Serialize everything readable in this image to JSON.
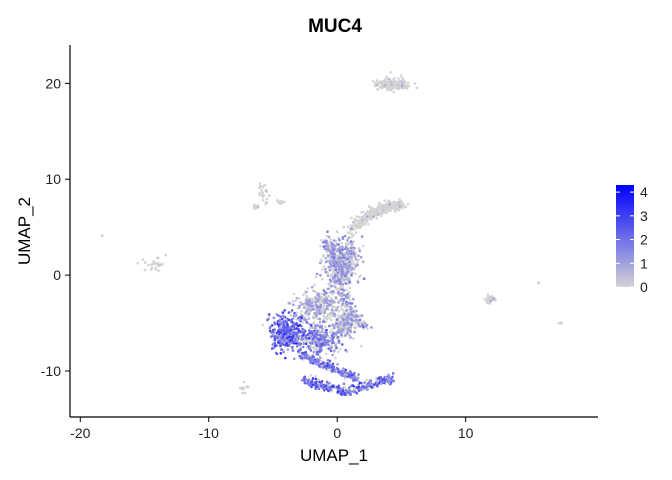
{
  "chart_data": {
    "type": "scatter",
    "title": "MUC4",
    "xlabel": "UMAP_1",
    "ylabel": "UMAP_2",
    "xlim": [
      -20.8,
      20.3
    ],
    "ylim": [
      -14.8,
      24.0
    ],
    "xticks": [
      -20,
      -10,
      0,
      10
    ],
    "xtick_labels": [
      "-20",
      "-10",
      "0",
      "10"
    ],
    "yticks": [
      -10,
      0,
      10,
      20
    ],
    "ytick_labels": [
      "-10",
      "0",
      "10",
      "20"
    ],
    "grid": false,
    "legend": {
      "position": "right",
      "ticks": [
        0,
        1,
        2,
        3,
        4
      ],
      "tick_labels": [
        "0",
        "1",
        "2",
        "3",
        "4"
      ],
      "range": [
        0,
        4.3
      ],
      "low_color": "#d3d3d3",
      "high_color": "#0000ff"
    },
    "clusters": [
      {
        "name": "upper-island",
        "cx": 4.3,
        "cy": 19.9,
        "sx": 1.1,
        "sy": 0.55,
        "n": 200,
        "level": 0.05
      },
      {
        "name": "arm-mid",
        "path": [
          [
            1.0,
            4.5
          ],
          [
            2.5,
            6.3
          ],
          [
            4.0,
            7.2
          ],
          [
            5.0,
            7.2
          ]
        ],
        "width": 0.45,
        "n": 260,
        "level": 0.15
      },
      {
        "name": "arm-head",
        "cx": 0.3,
        "cy": 1.3,
        "sx": 1.1,
        "sy": 2.4,
        "n": 480,
        "level": 0.6
      },
      {
        "name": "arm-left-edge",
        "path": [
          [
            -0.8,
            3.5
          ],
          [
            -0.2,
            1.5
          ],
          [
            0.2,
            -1.5
          ],
          [
            1.2,
            -4.0
          ],
          [
            2.2,
            -5.5
          ]
        ],
        "width": 0.35,
        "n": 220,
        "level": 0.7
      },
      {
        "name": "body-upper",
        "cx": -1.5,
        "cy": -3.2,
        "sx": 1.5,
        "sy": 1.3,
        "n": 320,
        "level": 0.45
      },
      {
        "name": "body-left",
        "cx": -3.8,
        "cy": -6.0,
        "sx": 1.2,
        "sy": 1.5,
        "n": 380,
        "level": 1.4
      },
      {
        "name": "body-center",
        "cx": -1.2,
        "cy": -6.8,
        "sx": 1.2,
        "sy": 1.1,
        "n": 260,
        "level": 0.9
      },
      {
        "name": "body-right",
        "cx": 0.6,
        "cy": -5.0,
        "sx": 0.7,
        "sy": 1.2,
        "n": 200,
        "level": 0.5
      },
      {
        "name": "tail-mid",
        "path": [
          [
            -2.8,
            -8.3
          ],
          [
            -1.0,
            -9.3
          ],
          [
            0.5,
            -10.2
          ],
          [
            1.5,
            -10.8
          ]
        ],
        "width": 0.35,
        "n": 200,
        "level": 1.2
      },
      {
        "name": "tail-lower",
        "path": [
          [
            -2.5,
            -11.0
          ],
          [
            -1.0,
            -11.6
          ],
          [
            0.5,
            -12.1
          ],
          [
            2.0,
            -11.7
          ],
          [
            3.5,
            -11.0
          ],
          [
            4.2,
            -10.8
          ]
        ],
        "width": 0.4,
        "n": 320,
        "level": 1.3
      },
      {
        "name": "top-small-a",
        "cx": -5.7,
        "cy": 8.6,
        "sx": 0.35,
        "sy": 0.8,
        "n": 22,
        "level": 0.1
      },
      {
        "name": "top-small-b",
        "cx": -6.4,
        "cy": 7.1,
        "sx": 0.25,
        "sy": 0.25,
        "n": 8,
        "level": 0.05
      },
      {
        "name": "top-small-c",
        "cx": -4.4,
        "cy": 7.6,
        "sx": 0.3,
        "sy": 0.25,
        "n": 10,
        "level": 0.1
      },
      {
        "name": "left-group",
        "cx": -14.0,
        "cy": 1.1,
        "sx": 0.9,
        "sy": 0.5,
        "n": 26,
        "level": 0.05
      },
      {
        "name": "left-far",
        "cx": -18.3,
        "cy": 4.1,
        "sx": 0.05,
        "sy": 0.05,
        "n": 2,
        "level": 0.0
      },
      {
        "name": "right-group",
        "cx": 11.9,
        "cy": -2.5,
        "sx": 0.4,
        "sy": 0.35,
        "n": 45,
        "level": 0.05
      },
      {
        "name": "right-single",
        "cx": 15.7,
        "cy": -0.8,
        "sx": 0.05,
        "sy": 0.05,
        "n": 3,
        "level": 0.0
      },
      {
        "name": "right-far",
        "cx": 17.4,
        "cy": -5.0,
        "sx": 0.12,
        "sy": 0.1,
        "n": 6,
        "level": 0.0
      },
      {
        "name": "bottom-left",
        "cx": -7.3,
        "cy": -11.9,
        "sx": 0.25,
        "sy": 0.35,
        "n": 10,
        "level": 0.1
      }
    ]
  }
}
